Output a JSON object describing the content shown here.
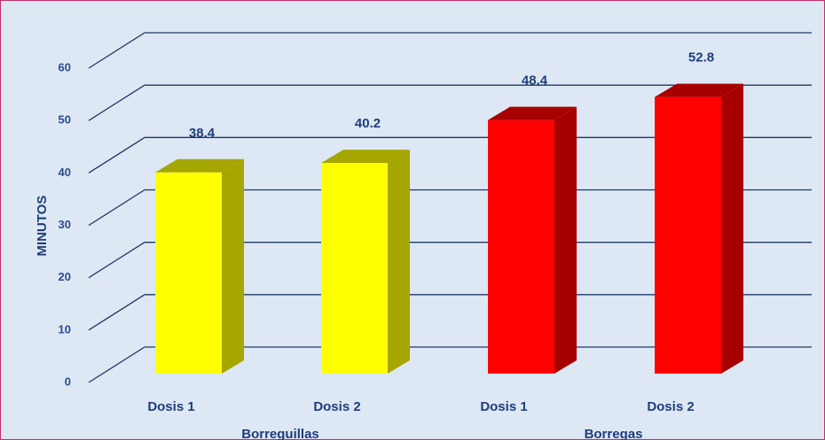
{
  "chart_data": {
    "type": "bar3d",
    "ylabel": "MINUTOS",
    "categories": [
      "Dosis 1",
      "Dosis 2",
      "Dosis 1",
      "Dosis 2"
    ],
    "groups": [
      "Borreguillas",
      "Borregas"
    ],
    "values": [
      38.4,
      40.2,
      48.4,
      52.8
    ],
    "colors": [
      "#ffff00",
      "#ffff00",
      "#ff0000",
      "#ff0000"
    ],
    "ylim": [
      0,
      60
    ],
    "yticks": [
      0,
      10,
      20,
      30,
      40,
      50,
      60
    ],
    "grid": true
  }
}
